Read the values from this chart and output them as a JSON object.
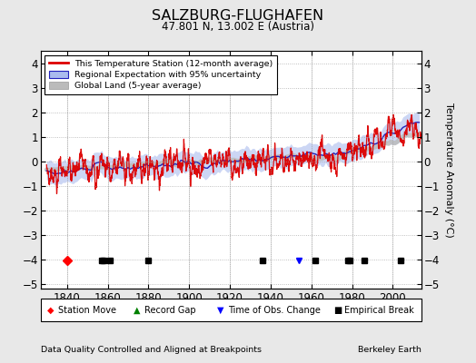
{
  "title": "SALZBURG-FLUGHAFEN",
  "subtitle": "47.801 N, 13.002 E (Austria)",
  "ylabel": "Temperature Anomaly (°C)",
  "xlabel_footer": "Data Quality Controlled and Aligned at Breakpoints",
  "xlabel_footer_right": "Berkeley Earth",
  "ylim": [
    -5.2,
    4.5
  ],
  "xlim": [
    1827,
    2014
  ],
  "yticks": [
    -5,
    -4,
    -3,
    -2,
    -1,
    0,
    1,
    2,
    3,
    4
  ],
  "xticks": [
    1840,
    1860,
    1880,
    1900,
    1920,
    1940,
    1960,
    1980,
    2000
  ],
  "seed": 42,
  "start_year": 1830,
  "end_year": 2013,
  "background_color": "#e8e8e8",
  "plot_bg_color": "#ffffff",
  "station_color": "#dd0000",
  "regional_line_color": "#2222bb",
  "uncertainty_color": "#aabbee",
  "global_color": "#bbbbbb",
  "empirical_break_years": [
    1857,
    1858,
    1861,
    1880,
    1936,
    1962,
    1978,
    1979,
    1986,
    2004
  ],
  "station_move_years": [
    1840
  ],
  "record_gap_years": [],
  "obs_change_years": [
    1954
  ],
  "marker_y": -4.05,
  "figsize": [
    5.24,
    4.0
  ],
  "dpi": 100
}
